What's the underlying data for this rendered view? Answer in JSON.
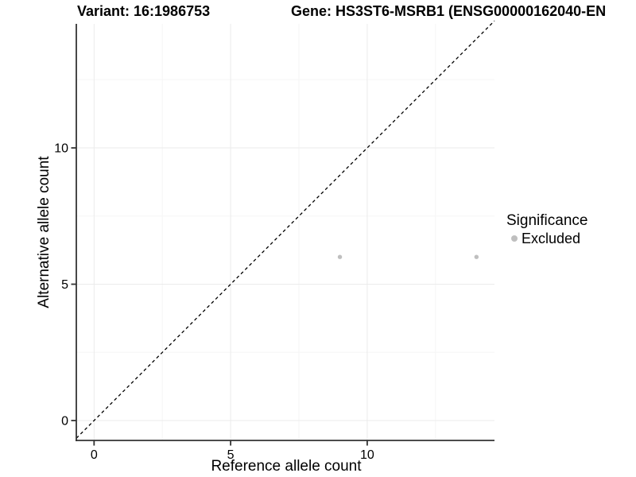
{
  "titles": {
    "variant": "Variant: 16:1986753",
    "gene": "Gene: HS3ST6-MSRB1 (ENSG00000162040-EN"
  },
  "legend": {
    "title": "Significance",
    "items": [
      {
        "label": "Excluded",
        "color": "#bfbfbf"
      }
    ]
  },
  "colors": {
    "background": "#ffffff",
    "axis_line": "#333333",
    "grid_major": "#ebebeb",
    "grid_minor": "#f6f6f6",
    "tick_mark": "#333333",
    "text": "#000000",
    "point": "#bfbfbf",
    "reference_line": "#000000"
  },
  "chart_data": {
    "type": "scatter",
    "title": "Variant: 16:1986753",
    "subtitle": "Gene: HS3ST6-MSRB1 (ENSG00000162040-EN",
    "xlabel": "Reference allele count",
    "ylabel": "Alternative allele count",
    "xlim": [
      -0.65,
      14.66
    ],
    "ylim": [
      -0.73,
      14.55
    ],
    "x_major_ticks": [
      0,
      5,
      10
    ],
    "y_major_ticks": [
      0,
      5,
      10
    ],
    "x_minor_ticks": [
      2.5,
      7.5,
      12.5
    ],
    "y_minor_ticks": [
      2.5,
      7.5,
      12.5
    ],
    "grid": true,
    "legend_position": "right",
    "legend_title": "Significance",
    "series": [
      {
        "name": "Excluded",
        "color": "#bfbfbf",
        "points": [
          [
            9,
            6
          ],
          [
            14,
            6
          ]
        ]
      }
    ],
    "reference_line": {
      "type": "identity",
      "slope": 1,
      "intercept": 0,
      "style": "dashed",
      "color": "#000000"
    }
  }
}
